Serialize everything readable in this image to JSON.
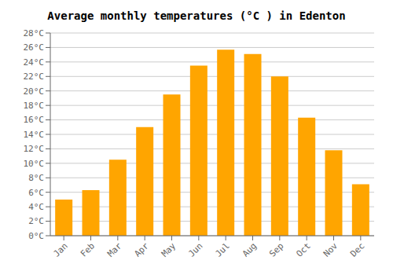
{
  "chart_data": {
    "type": "bar",
    "title": "Average monthly temperatures (°C ) in Edenton",
    "categories": [
      "Jan",
      "Feb",
      "Mar",
      "Apr",
      "May",
      "Jun",
      "Jul",
      "Aug",
      "Sep",
      "Oct",
      "Nov",
      "Dec"
    ],
    "values": [
      5.0,
      6.3,
      10.5,
      15.0,
      19.5,
      23.5,
      25.7,
      25.1,
      22.0,
      16.3,
      11.8,
      7.1
    ],
    "color": "#FFA500",
    "ylim": [
      0,
      28
    ],
    "yticks": [
      {
        "value": 0,
        "label": "0°C"
      },
      {
        "value": 2,
        "label": "2°C"
      },
      {
        "value": 4,
        "label": "4°C"
      },
      {
        "value": 6,
        "label": "6°C"
      },
      {
        "value": 8,
        "label": "8°C"
      },
      {
        "value": 10,
        "label": "10°C"
      },
      {
        "value": 12,
        "label": "12°C"
      },
      {
        "value": 14,
        "label": "14°C"
      },
      {
        "value": 16,
        "label": "16°C"
      },
      {
        "value": 18,
        "label": "18°C"
      },
      {
        "value": 20,
        "label": "20°C"
      },
      {
        "value": 22,
        "label": "22°C"
      },
      {
        "value": 24,
        "label": "24°C"
      },
      {
        "value": 26,
        "label": "26°C"
      },
      {
        "value": 28,
        "label": "28°C"
      }
    ],
    "grid": true
  }
}
